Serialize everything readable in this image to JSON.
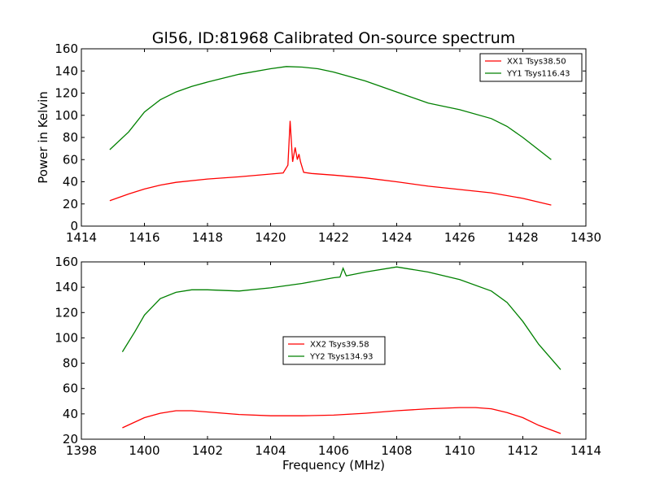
{
  "chart_data": [
    {
      "type": "line",
      "title": "Gl56, ID:81968 Calibrated On-source spectrum",
      "xlabel": "",
      "ylabel": "Power in Kelvin",
      "xlim": [
        1414,
        1430
      ],
      "ylim": [
        0,
        160
      ],
      "xticks": [
        1414,
        1416,
        1418,
        1420,
        1422,
        1424,
        1426,
        1428,
        1430
      ],
      "yticks": [
        0,
        20,
        40,
        60,
        80,
        100,
        120,
        140,
        160
      ],
      "grid": false,
      "legend_position": "top-right",
      "series": [
        {
          "name": "XX1 Tsys38.50",
          "color": "#ff0000",
          "x": [
            1414.9,
            1415.5,
            1416.0,
            1416.5,
            1417.0,
            1418.0,
            1419.0,
            1420.0,
            1420.4,
            1420.55,
            1420.62,
            1420.7,
            1420.78,
            1420.85,
            1420.9,
            1420.95,
            1421.05,
            1421.3,
            1422.0,
            1423.0,
            1424.0,
            1425.0,
            1426.0,
            1427.0,
            1428.0,
            1428.9
          ],
          "y": [
            23,
            29,
            33.5,
            37,
            39.5,
            42.5,
            44.5,
            47,
            48,
            55,
            95,
            58,
            71,
            60,
            65,
            58,
            48.5,
            47.5,
            46,
            43.5,
            40,
            36,
            33,
            30,
            25,
            19
          ]
        },
        {
          "name": "YY1 Tsys116.43",
          "color": "#008000",
          "x": [
            1414.9,
            1415.5,
            1416.0,
            1416.5,
            1417.0,
            1417.5,
            1418.0,
            1419.0,
            1420.0,
            1420.5,
            1421.0,
            1421.5,
            1422.0,
            1423.0,
            1424.0,
            1425.0,
            1426.0,
            1427.0,
            1427.5,
            1428.0,
            1428.9
          ],
          "y": [
            69,
            85,
            103,
            114,
            121,
            126,
            130,
            137,
            142,
            144,
            143.5,
            142,
            139,
            131,
            121,
            111,
            105,
            97,
            90,
            80,
            60
          ]
        }
      ]
    },
    {
      "type": "line",
      "title": "",
      "xlabel": "Frequency (MHz)",
      "ylabel": "",
      "xlim": [
        1398,
        1414
      ],
      "ylim": [
        20,
        160
      ],
      "xticks": [
        1398,
        1400,
        1402,
        1404,
        1406,
        1408,
        1410,
        1412,
        1414
      ],
      "yticks": [
        20,
        40,
        60,
        80,
        100,
        120,
        140,
        160
      ],
      "grid": false,
      "legend_position": "center",
      "series": [
        {
          "name": "XX2 Tsys39.58",
          "color": "#ff0000",
          "x": [
            1399.3,
            1400.0,
            1400.5,
            1401.0,
            1401.5,
            1402.0,
            1403.0,
            1404.0,
            1405.0,
            1406.0,
            1407.0,
            1408.0,
            1409.0,
            1410.0,
            1410.5,
            1411.0,
            1411.5,
            1412.0,
            1412.5,
            1413.2
          ],
          "y": [
            29,
            37,
            40.5,
            42.5,
            42.5,
            41.5,
            39.5,
            38.5,
            38.5,
            39,
            40.5,
            42.5,
            44,
            45,
            45,
            44,
            41,
            37,
            31,
            24.5
          ]
        },
        {
          "name": "YY2 Tsys134.93",
          "color": "#008000",
          "x": [
            1399.3,
            1399.7,
            1400.0,
            1400.5,
            1401.0,
            1401.5,
            1402.0,
            1403.0,
            1404.0,
            1405.0,
            1406.0,
            1406.2,
            1406.3,
            1406.4,
            1406.6,
            1407.0,
            1408.0,
            1409.0,
            1410.0,
            1411.0,
            1411.5,
            1412.0,
            1412.5,
            1413.2
          ],
          "y": [
            89,
            105,
            118,
            131,
            136,
            138,
            138,
            137,
            139.5,
            143,
            147.5,
            148,
            155,
            149,
            150,
            152,
            156,
            152,
            146,
            137,
            128,
            113,
            95,
            75
          ]
        }
      ]
    }
  ]
}
